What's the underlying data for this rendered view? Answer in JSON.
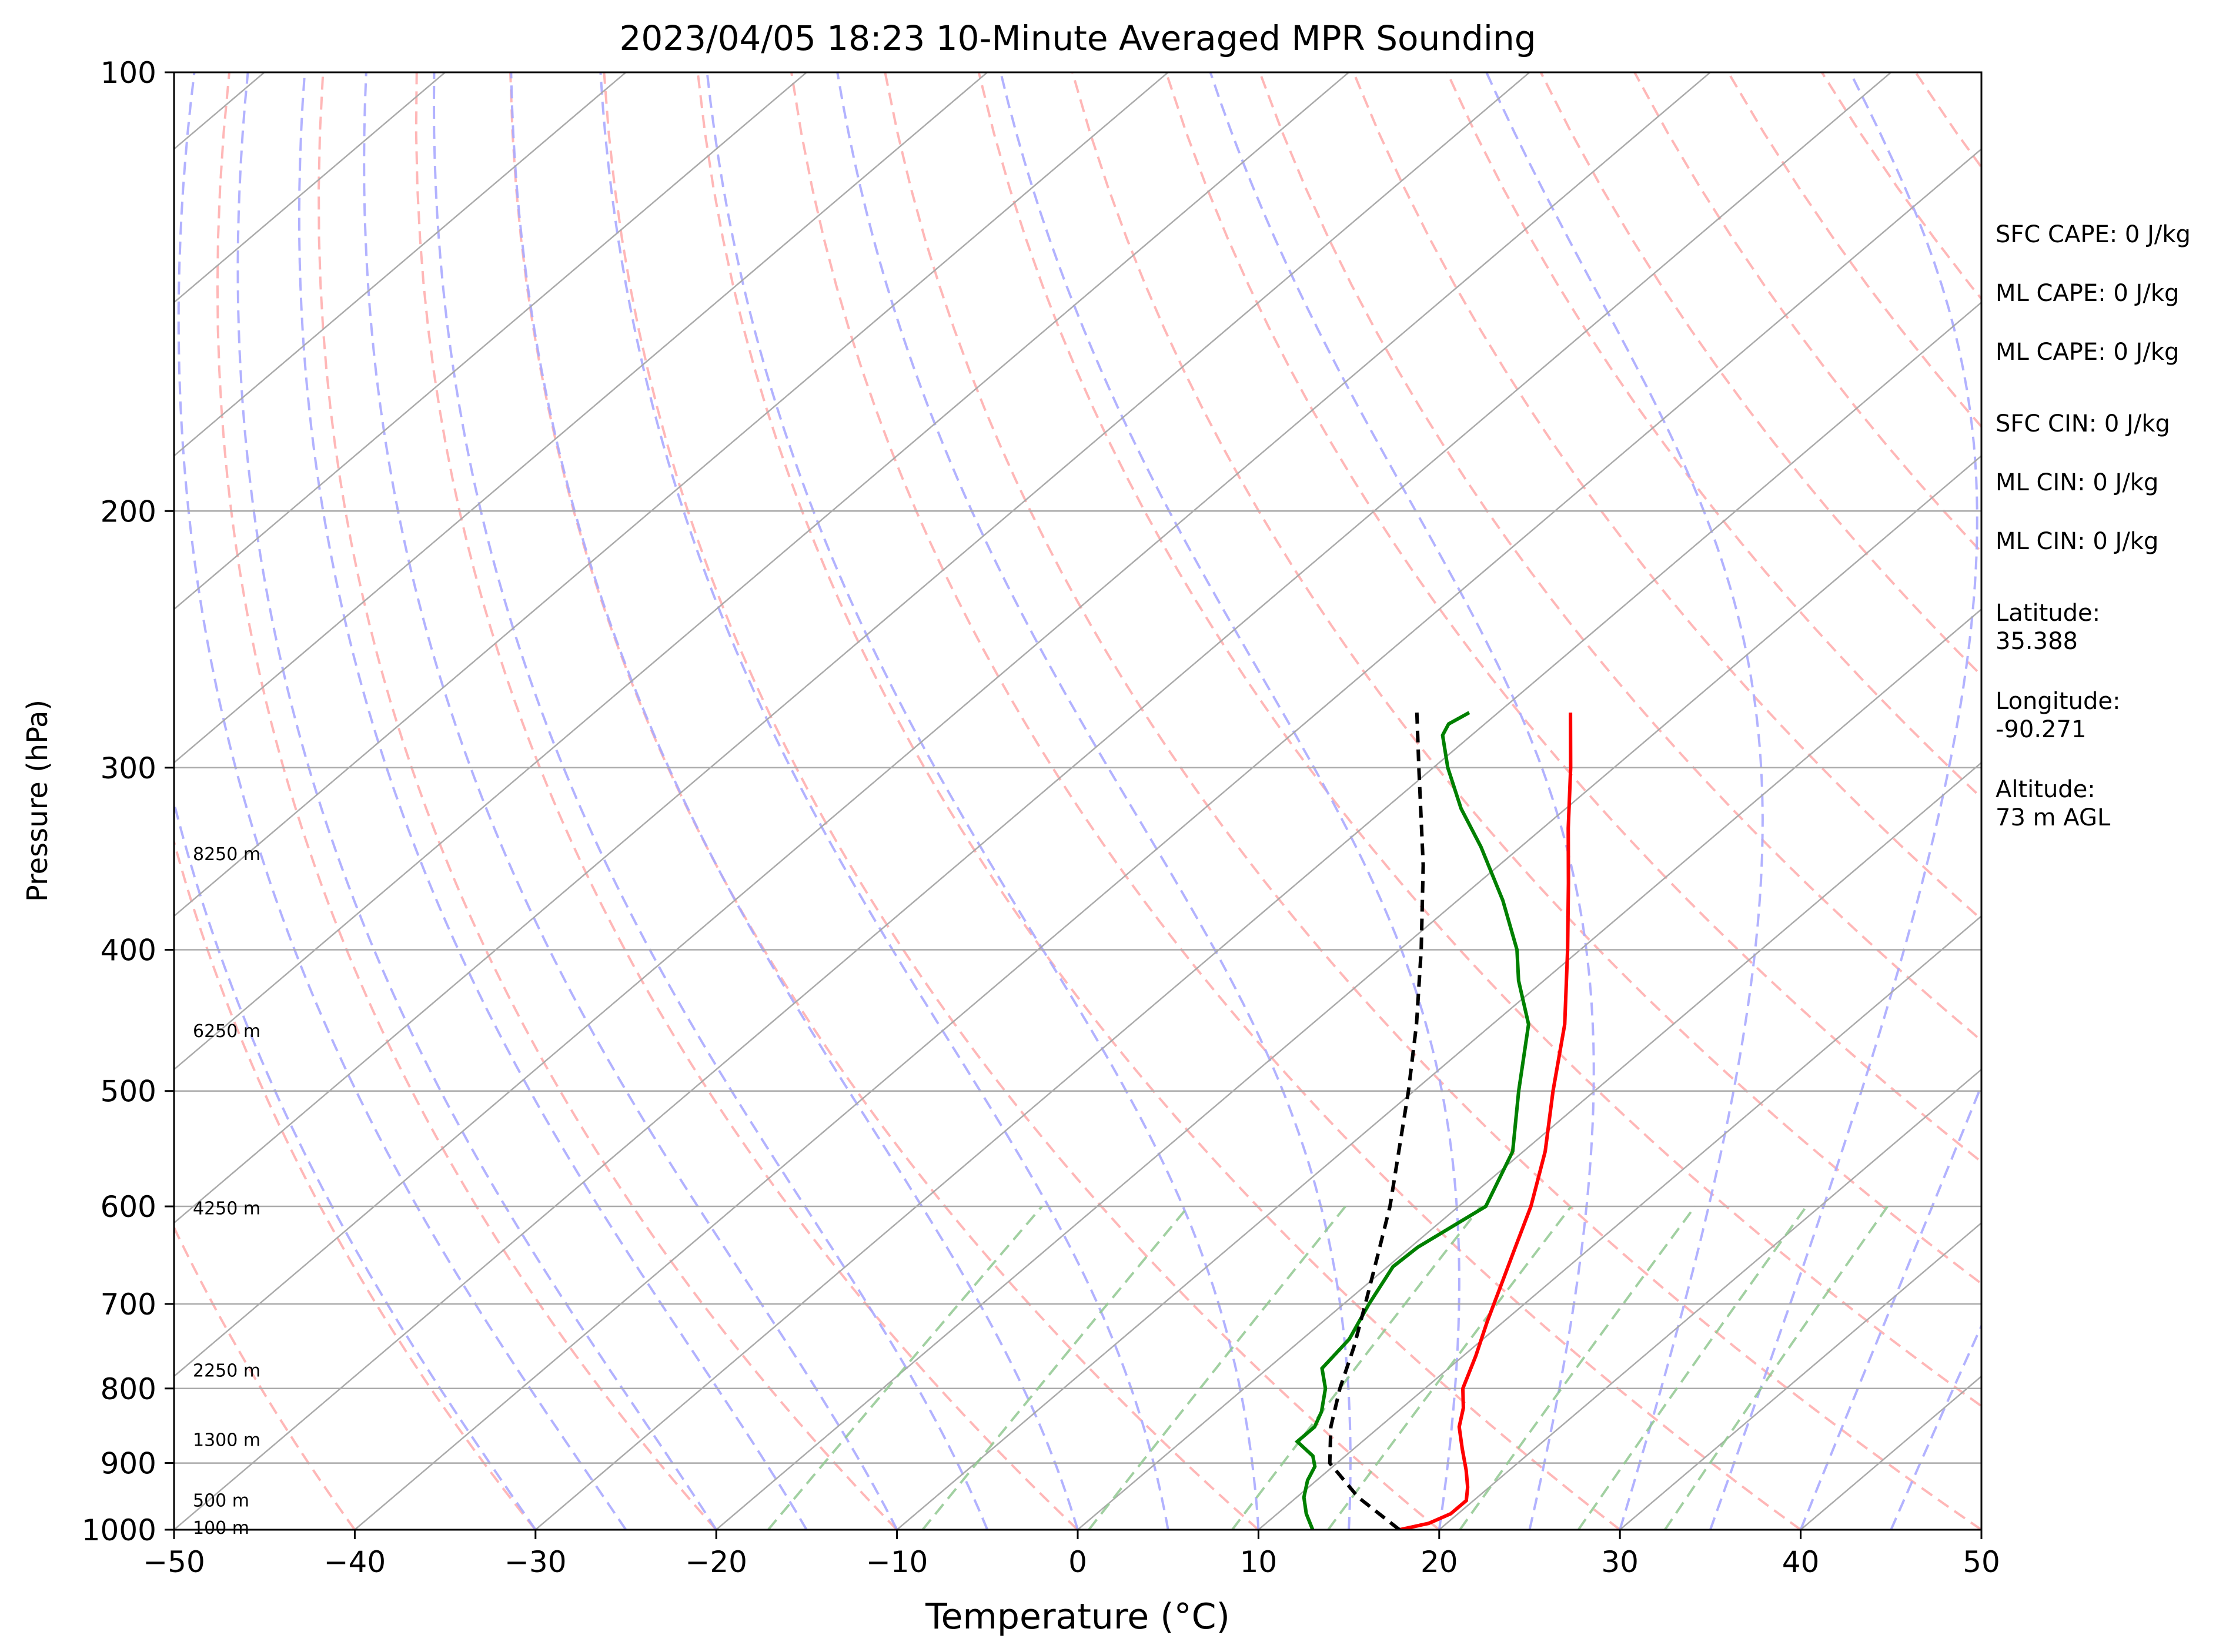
{
  "chart_data": {
    "type": "line",
    "subtype": "skew-t log-p",
    "title": "2023/04/05 18:23 10-Minute Averaged MPR Sounding",
    "xlabel": "Temperature (°C)",
    "ylabel": "Pressure (hPa)",
    "xlim": [
      -50,
      50
    ],
    "ylim": [
      1000,
      100
    ],
    "y_scale": "log",
    "x_ticks": [
      -50,
      -40,
      -30,
      -20,
      -10,
      0,
      10,
      20,
      30,
      40,
      50
    ],
    "x_tick_labels": [
      "−50",
      "−40",
      "−30",
      "−20",
      "−10",
      "0",
      "10",
      "20",
      "30",
      "40",
      "50"
    ],
    "y_ticks": [
      1000,
      900,
      800,
      700,
      600,
      500,
      400,
      300,
      200,
      100
    ],
    "y_tick_labels": [
      "1000",
      "900",
      "800",
      "700",
      "600",
      "500",
      "400",
      "300",
      "200",
      "100"
    ],
    "grid": true,
    "height_labels": [
      {
        "p": 997,
        "label": "100 m"
      },
      {
        "p": 955,
        "label": "500 m"
      },
      {
        "p": 868,
        "label": "1300 m"
      },
      {
        "p": 778,
        "label": "2250 m"
      },
      {
        "p": 602,
        "label": "4250 m"
      },
      {
        "p": 455,
        "label": "6250 m"
      },
      {
        "p": 344,
        "label": "8250 m"
      }
    ],
    "annotations": [
      "SFC CAPE: 0 J/kg",
      "ML CAPE: 0 J/kg",
      "ML CAPE: 0 J/kg",
      "SFC CIN: 0 J/kg",
      "ML CIN: 0 J/kg",
      "ML CIN: 0 J/kg",
      "Latitude:\n35.388",
      "Longitude:\n-90.271",
      "Altitude:\n73 m AGL"
    ],
    "series": [
      {
        "role": "temperature",
        "color": "#ff0000",
        "points": [
          {
            "p": 1000,
            "t": 17.8
          },
          {
            "p": 990,
            "t": 19.0
          },
          {
            "p": 975,
            "t": 19.6
          },
          {
            "p": 955,
            "t": 19.6
          },
          {
            "p": 935,
            "t": 18.8
          },
          {
            "p": 910,
            "t": 17.6
          },
          {
            "p": 880,
            "t": 16.0
          },
          {
            "p": 850,
            "t": 14.4
          },
          {
            "p": 825,
            "t": 13.4
          },
          {
            "p": 800,
            "t": 12.1
          },
          {
            "p": 760,
            "t": 10.7
          },
          {
            "p": 720,
            "t": 9.1
          },
          {
            "p": 680,
            "t": 7.5
          },
          {
            "p": 640,
            "t": 5.8
          },
          {
            "p": 600,
            "t": 4.0
          },
          {
            "p": 550,
            "t": 1.2
          },
          {
            "p": 500,
            "t": -2.3
          },
          {
            "p": 450,
            "t": -6.0
          },
          {
            "p": 400,
            "t": -10.7
          },
          {
            "p": 360,
            "t": -15.0
          },
          {
            "p": 330,
            "t": -18.6
          },
          {
            "p": 300,
            "t": -22.4
          },
          {
            "p": 275,
            "t": -26.0
          }
        ]
      },
      {
        "role": "dewpoint",
        "color": "#008000",
        "points": [
          {
            "p": 1000,
            "t": 13.0
          },
          {
            "p": 975,
            "t": 11.6
          },
          {
            "p": 950,
            "t": 10.4
          },
          {
            "p": 925,
            "t": 9.5
          },
          {
            "p": 905,
            "t": 9.0
          },
          {
            "p": 890,
            "t": 8.2
          },
          {
            "p": 870,
            "t": 6.4
          },
          {
            "p": 850,
            "t": 6.4
          },
          {
            "p": 830,
            "t": 5.8
          },
          {
            "p": 800,
            "t": 4.5
          },
          {
            "p": 775,
            "t": 3.0
          },
          {
            "p": 740,
            "t": 2.6
          },
          {
            "p": 700,
            "t": 1.4
          },
          {
            "p": 660,
            "t": 0.3
          },
          {
            "p": 640,
            "t": 0.4
          },
          {
            "p": 600,
            "t": 1.5
          },
          {
            "p": 550,
            "t": -0.6
          },
          {
            "p": 500,
            "t": -4.2
          },
          {
            "p": 450,
            "t": -8.0
          },
          {
            "p": 420,
            "t": -11.4
          },
          {
            "p": 400,
            "t": -13.5
          },
          {
            "p": 370,
            "t": -17.5
          },
          {
            "p": 340,
            "t": -22.2
          },
          {
            "p": 320,
            "t": -25.8
          },
          {
            "p": 300,
            "t": -29.2
          },
          {
            "p": 285,
            "t": -31.6
          },
          {
            "p": 280,
            "t": -32.0
          },
          {
            "p": 275,
            "t": -31.6
          }
        ]
      },
      {
        "role": "parcel",
        "color": "#000000",
        "style": "dashed",
        "points": [
          {
            "p": 1000,
            "t": 17.8
          },
          {
            "p": 950,
            "t": 13.4
          },
          {
            "p": 900,
            "t": 9.6
          },
          {
            "p": 850,
            "t": 7.3
          },
          {
            "p": 800,
            "t": 5.3
          },
          {
            "p": 750,
            "t": 3.4
          },
          {
            "p": 700,
            "t": 1.2
          },
          {
            "p": 650,
            "t": -1.2
          },
          {
            "p": 600,
            "t": -3.8
          },
          {
            "p": 550,
            "t": -6.9
          },
          {
            "p": 500,
            "t": -10.3
          },
          {
            "p": 450,
            "t": -14.2
          },
          {
            "p": 400,
            "t": -18.8
          },
          {
            "p": 350,
            "t": -24.2
          },
          {
            "p": 300,
            "t": -30.8
          },
          {
            "p": 275,
            "t": -34.5
          }
        ]
      }
    ],
    "background_lines": {
      "isotherms_color": "#aaaaaa",
      "dry_adiabats_color": "#ffaaaa",
      "moist_adiabats_color": "#aaaaff",
      "mixing_ratio_color": "#90c890"
    }
  }
}
